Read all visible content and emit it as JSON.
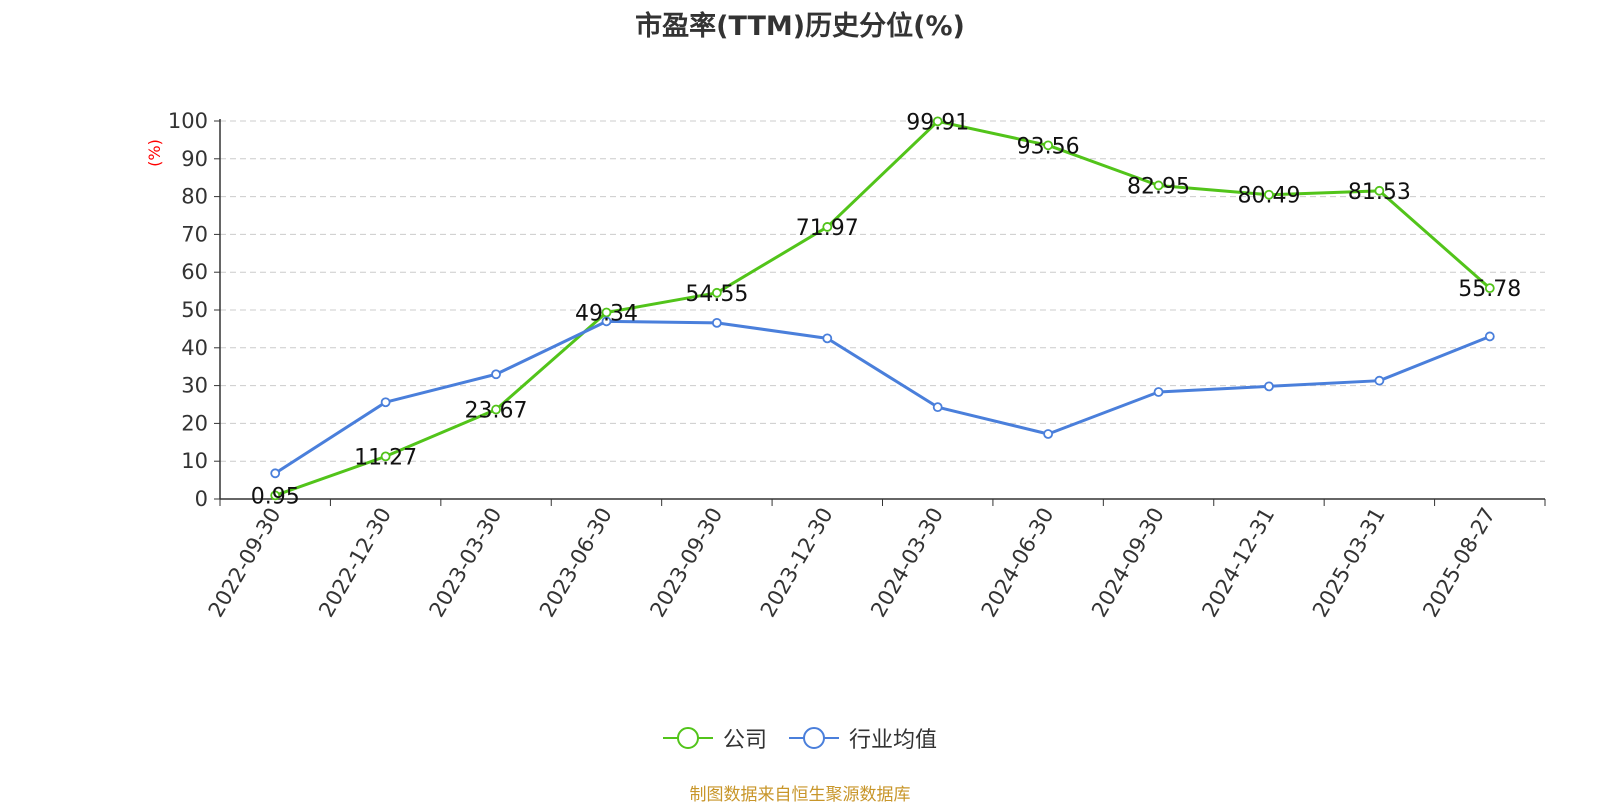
{
  "source_note": "制图数据来自恒生聚源数据库",
  "chart_data": {
    "type": "line",
    "title": "市盈率(TTM)历史分位(%)",
    "ylabel": "(%)",
    "xlabel": "",
    "ylim": [
      0,
      100
    ],
    "yticks": [
      0,
      10,
      20,
      30,
      40,
      50,
      60,
      70,
      80,
      90,
      100
    ],
    "grid": true,
    "legend_position": "bottom-center",
    "categories": [
      "2022-09-30",
      "2022-12-30",
      "2023-03-30",
      "2023-06-30",
      "2023-09-30",
      "2023-12-30",
      "2024-03-30",
      "2024-06-30",
      "2024-09-30",
      "2024-12-31",
      "2025-03-31",
      "2025-08-27"
    ],
    "series": [
      {
        "name": "公司",
        "color": "#52c41a",
        "values": [
          0.95,
          11.27,
          23.67,
          49.34,
          54.55,
          71.97,
          99.91,
          93.56,
          82.95,
          80.49,
          81.53,
          55.78
        ],
        "labels": [
          "0.95",
          "11.27",
          "23.67",
          "49.34",
          "54.55",
          "71.97",
          "99.91",
          "93.56",
          "82.95",
          "80.49",
          "81.53",
          "55.78"
        ]
      },
      {
        "name": "行业均值",
        "color": "#4a7fdb",
        "values": [
          6.8,
          25.6,
          33.0,
          47.0,
          46.6,
          42.5,
          24.3,
          17.2,
          28.3,
          29.8,
          31.3,
          43.0
        ]
      }
    ]
  }
}
